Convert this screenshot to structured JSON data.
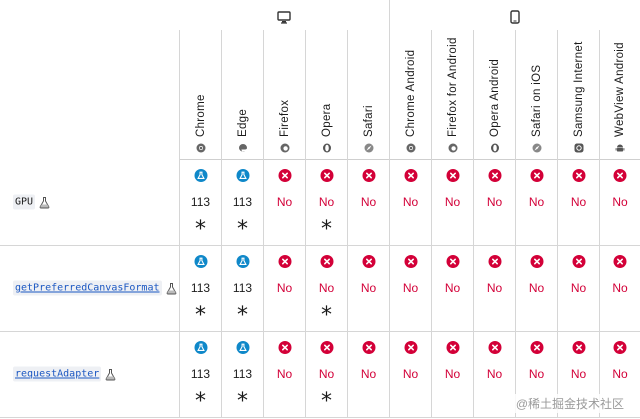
{
  "platforms": [
    {
      "name": "desktop",
      "icon": "monitor-icon"
    },
    {
      "name": "mobile",
      "icon": "phone-icon"
    }
  ],
  "browsers": [
    {
      "name": "Chrome",
      "icon": "chrome-icon"
    },
    {
      "name": "Edge",
      "icon": "edge-icon"
    },
    {
      "name": "Firefox",
      "icon": "firefox-icon"
    },
    {
      "name": "Opera",
      "icon": "opera-icon"
    },
    {
      "name": "Safari",
      "icon": "safari-icon"
    },
    {
      "name": "Chrome Android",
      "icon": "chrome-icon"
    },
    {
      "name": "Firefox for Android",
      "icon": "firefox-icon"
    },
    {
      "name": "Opera Android",
      "icon": "opera-icon"
    },
    {
      "name": "Safari on iOS",
      "icon": "safari-icon"
    },
    {
      "name": "Samsung Internet",
      "icon": "samsung-internet-icon"
    },
    {
      "name": "WebView Android",
      "icon": "android-icon"
    }
  ],
  "features": [
    {
      "name": "GPU",
      "link": false,
      "experimental_icon": "flask-icon",
      "cells": [
        {
          "status": "yes",
          "value": "113",
          "note": "*"
        },
        {
          "status": "yes",
          "value": "113",
          "note": "*"
        },
        {
          "status": "no",
          "value": "No",
          "note": ""
        },
        {
          "status": "no",
          "value": "No",
          "note": "*"
        },
        {
          "status": "no",
          "value": "No",
          "note": ""
        },
        {
          "status": "no",
          "value": "No",
          "note": ""
        },
        {
          "status": "no",
          "value": "No",
          "note": ""
        },
        {
          "status": "no",
          "value": "No",
          "note": ""
        },
        {
          "status": "no",
          "value": "No",
          "note": ""
        },
        {
          "status": "no",
          "value": "No",
          "note": ""
        },
        {
          "status": "no",
          "value": "No",
          "note": ""
        }
      ]
    },
    {
      "name": "getPreferredCanvasFormat",
      "link": true,
      "experimental_icon": "flask-icon",
      "cells": [
        {
          "status": "yes",
          "value": "113",
          "note": "*"
        },
        {
          "status": "yes",
          "value": "113",
          "note": "*"
        },
        {
          "status": "no",
          "value": "No",
          "note": ""
        },
        {
          "status": "no",
          "value": "No",
          "note": "*"
        },
        {
          "status": "no",
          "value": "No",
          "note": ""
        },
        {
          "status": "no",
          "value": "No",
          "note": ""
        },
        {
          "status": "no",
          "value": "No",
          "note": ""
        },
        {
          "status": "no",
          "value": "No",
          "note": ""
        },
        {
          "status": "no",
          "value": "No",
          "note": ""
        },
        {
          "status": "no",
          "value": "No",
          "note": ""
        },
        {
          "status": "no",
          "value": "No",
          "note": ""
        }
      ]
    },
    {
      "name": "requestAdapter",
      "link": true,
      "experimental_icon": "flask-icon",
      "cells": [
        {
          "status": "yes",
          "value": "113",
          "note": "*"
        },
        {
          "status": "yes",
          "value": "113",
          "note": "*"
        },
        {
          "status": "no",
          "value": "No",
          "note": ""
        },
        {
          "status": "no",
          "value": "No",
          "note": "*"
        },
        {
          "status": "no",
          "value": "No",
          "note": ""
        },
        {
          "status": "no",
          "value": "No",
          "note": ""
        },
        {
          "status": "no",
          "value": "No",
          "note": ""
        },
        {
          "status": "no",
          "value": "No",
          "note": ""
        },
        {
          "status": "no",
          "value": "No",
          "note": ""
        },
        {
          "status": "no",
          "value": "No",
          "note": ""
        },
        {
          "status": "no",
          "value": "No",
          "note": ""
        }
      ]
    }
  ],
  "watermark": "@稀土掘金技术社区",
  "colors": {
    "no": "#d30038",
    "yes": "#0f88c9",
    "link": "#1b57c2",
    "border": "#d6d6d6"
  }
}
